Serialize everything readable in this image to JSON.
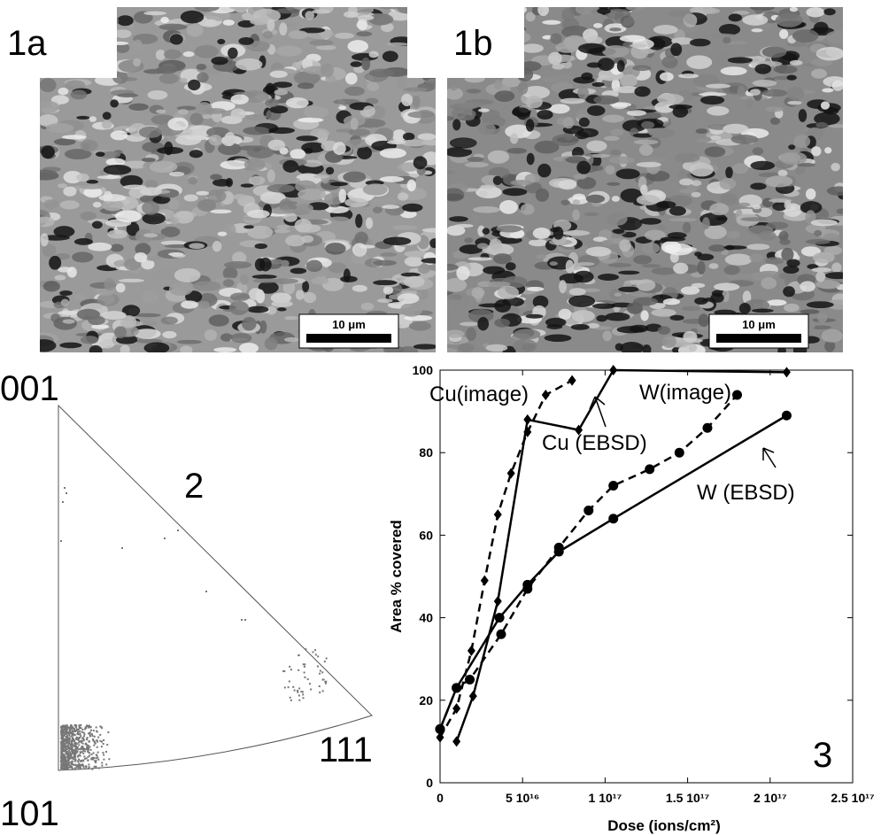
{
  "panels": {
    "a": {
      "label": "1a",
      "scale_bar": "10 μm"
    },
    "b": {
      "label": "1b",
      "scale_bar": "10 μm"
    },
    "pole_figure": {
      "label": "2",
      "corners": [
        "001",
        "101",
        "111"
      ]
    }
  },
  "chart_data": {
    "type": "line",
    "label": "3",
    "xlabel": "Dose (ions/cm²)",
    "ylabel": "Area % covered",
    "xlim": [
      0,
      2.5e+17
    ],
    "ylim": [
      0,
      100
    ],
    "xticks": [
      0,
      {
        "value": 5e+16,
        "label": "5 10¹⁶"
      },
      {
        "value": 1e+17,
        "label": "1 10¹⁷"
      },
      {
        "value": 1.5e+17,
        "label": "1.5 10¹⁷"
      },
      {
        "value": 2e+17,
        "label": "2 10¹⁷"
      },
      {
        "value": 2.5e+17,
        "label": "2.5 10¹⁷"
      }
    ],
    "yticks": [
      0,
      20,
      40,
      60,
      80,
      100
    ],
    "series": [
      {
        "name": "Cu(image)",
        "color": "#000000",
        "dash": true,
        "marker": "diamond",
        "x": [
          0,
          1e+16,
          1.9e+16,
          2.7e+16,
          3.5e+16,
          4.3e+16,
          5.3e+16,
          6.4e+16,
          8e+16
        ],
        "values": [
          11,
          18,
          32,
          49,
          65,
          75,
          85,
          94,
          97.5
        ]
      },
      {
        "name": "Cu (EBSD)",
        "color": "#000000",
        "dash": false,
        "marker": "diamond",
        "x": [
          1e+16,
          2e+16,
          3.5e+16,
          5.3e+16,
          8.4e+16,
          1.05e+17,
          2.1e+17
        ],
        "values": [
          10,
          21,
          44,
          88,
          85.5,
          100,
          99.5
        ]
      },
      {
        "name": "W(image)",
        "color": "#000000",
        "dash": true,
        "marker": "circle",
        "x": [
          0,
          1e+16,
          1.8e+16,
          3.7e+16,
          5.3e+16,
          7.2e+16,
          9e+16,
          1.05e+17,
          1.27e+17,
          1.45e+17,
          1.62e+17,
          1.8e+17
        ],
        "values": [
          13,
          23,
          25,
          36,
          47,
          57,
          66,
          72,
          76,
          80,
          86,
          94
        ]
      },
      {
        "name": "W (EBSD)",
        "color": "#000000",
        "dash": false,
        "marker": "circle",
        "x": [
          0,
          1e+16,
          3.6e+16,
          5.3e+16,
          7.2e+16,
          1.05e+17,
          2.1e+17
        ],
        "values": [
          13,
          23,
          40,
          48,
          56,
          64,
          89
        ]
      }
    ]
  }
}
